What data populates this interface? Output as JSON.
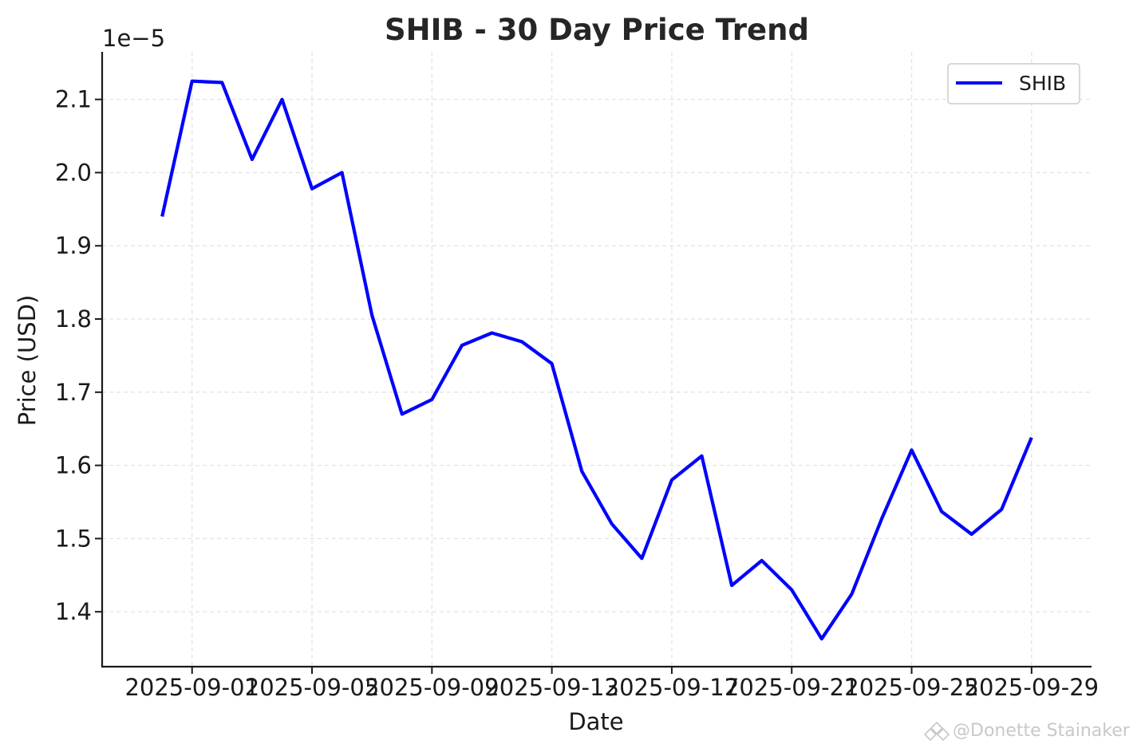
{
  "chart_data": {
    "type": "line",
    "title": "SHIB - 30 Day Price Trend",
    "xlabel": "Date",
    "ylabel": "Price (USD)",
    "y_offset_label": "1e−5",
    "y_scale_factor": 1e-05,
    "x_ticks": [
      "2025-09-01",
      "2025-09-05",
      "2025-09-09",
      "2025-09-13",
      "2025-09-17",
      "2025-09-21",
      "2025-09-25",
      "2025-09-29"
    ],
    "y_ticks": [
      1.4,
      1.5,
      1.6,
      1.7,
      1.8,
      1.9,
      2.0,
      2.1
    ],
    "y_tick_labels": [
      "1.4",
      "1.5",
      "1.6",
      "1.7",
      "1.8",
      "1.9",
      "2.0",
      "2.1"
    ],
    "xlim": [
      "2025-08-29",
      "2025-10-01"
    ],
    "ylim": [
      1.325,
      2.165
    ],
    "grid": true,
    "legend_position": "top-right",
    "series": [
      {
        "name": "SHIB",
        "color": "#0000ff",
        "x": [
          "2025-08-31",
          "2025-09-01",
          "2025-09-02",
          "2025-09-03",
          "2025-09-04",
          "2025-09-05",
          "2025-09-06",
          "2025-09-07",
          "2025-09-08",
          "2025-09-09",
          "2025-09-10",
          "2025-09-11",
          "2025-09-12",
          "2025-09-13",
          "2025-09-14",
          "2025-09-15",
          "2025-09-16",
          "2025-09-17",
          "2025-09-18",
          "2025-09-19",
          "2025-09-20",
          "2025-09-21",
          "2025-09-22",
          "2025-09-23",
          "2025-09-24",
          "2025-09-25",
          "2025-09-26",
          "2025-09-27",
          "2025-09-28",
          "2025-09-29"
        ],
        "values": [
          1.94,
          2.125,
          2.123,
          2.018,
          2.1,
          1.978,
          2.0,
          1.805,
          1.67,
          1.69,
          1.764,
          1.781,
          1.769,
          1.739,
          1.592,
          1.52,
          1.473,
          1.58,
          1.613,
          1.436,
          1.47,
          1.43,
          1.363,
          1.424,
          1.527,
          1.621,
          1.537,
          1.506,
          1.54,
          1.638
        ]
      }
    ]
  },
  "watermark": {
    "text": "@Donette Stainaker",
    "icon": "watermark-logo-icon"
  }
}
